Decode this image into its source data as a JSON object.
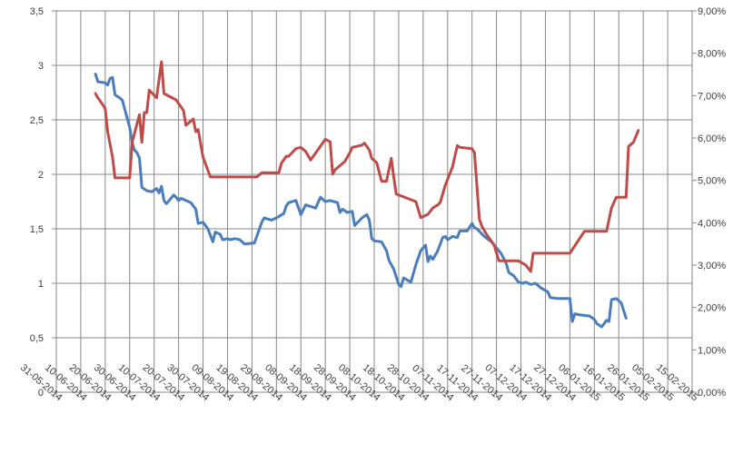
{
  "chart_data": {
    "type": "line",
    "title": "",
    "xlabel": "",
    "ylabel": "",
    "grid": true,
    "legend": "none",
    "x_axis": {
      "type": "date",
      "range": [
        "2014-05-31",
        "2015-02-15"
      ],
      "tick_labels": [
        "31-05-2014",
        "10-06-2014",
        "20-06-2014",
        "30-06-2014",
        "10-07-2014",
        "20-07-2014",
        "30-07-2014",
        "09-08-2014",
        "19-08-2014",
        "29-08-2014",
        "08-09-2014",
        "18-09-2014",
        "28-09-2014",
        "08-10-2014",
        "18-10-2014",
        "28-10-2014",
        "07-11-2014",
        "17-11-2014",
        "27-11-2014",
        "07-12-2014",
        "17-12-2014",
        "27-12-2014",
        "06-01-2015",
        "16-01-2015",
        "26-01-2015",
        "05-02-2015",
        "15-02-2015"
      ]
    },
    "y_left": {
      "range": [
        0,
        3.5
      ],
      "tick_labels": [
        "0",
        "0,5",
        "1",
        "1,5",
        "2",
        "2,5",
        "3",
        "3,5"
      ]
    },
    "y_right": {
      "range": [
        0,
        9
      ],
      "tick_labels": [
        "0,00%",
        "1,00%",
        "2,00%",
        "3,00%",
        "4,00%",
        "5,00%",
        "6,00%",
        "7,00%",
        "8,00%",
        "9,00%"
      ]
    },
    "series": [
      {
        "axis": "left",
        "color": "#4a7ebb",
        "points": [
          [
            "2014-06-16",
            2.92
          ],
          [
            "2014-06-17",
            2.85
          ],
          [
            "2014-06-20",
            2.84
          ],
          [
            "2014-06-21",
            2.82
          ],
          [
            "2014-06-22",
            2.88
          ],
          [
            "2014-06-23",
            2.89
          ],
          [
            "2014-06-24",
            2.73
          ],
          [
            "2014-06-26",
            2.7
          ],
          [
            "2014-06-27",
            2.68
          ],
          [
            "2014-06-30",
            2.43
          ],
          [
            "2014-07-01",
            2.29
          ],
          [
            "2014-07-02",
            2.22
          ],
          [
            "2014-07-03",
            2.2
          ],
          [
            "2014-07-04",
            2.15
          ],
          [
            "2014-07-05",
            1.88
          ],
          [
            "2014-07-07",
            1.85
          ],
          [
            "2014-07-09",
            1.84
          ],
          [
            "2014-07-11",
            1.87
          ],
          [
            "2014-07-12",
            1.83
          ],
          [
            "2014-07-13",
            1.89
          ],
          [
            "2014-07-14",
            1.76
          ],
          [
            "2014-07-15",
            1.73
          ],
          [
            "2014-07-18",
            1.81
          ],
          [
            "2014-07-19",
            1.79
          ],
          [
            "2014-07-20",
            1.76
          ],
          [
            "2014-07-21",
            1.78
          ],
          [
            "2014-07-23",
            1.76
          ],
          [
            "2014-07-25",
            1.74
          ],
          [
            "2014-07-27",
            1.68
          ],
          [
            "2014-07-28",
            1.55
          ],
          [
            "2014-07-30",
            1.56
          ],
          [
            "2014-08-01",
            1.5
          ],
          [
            "2014-08-03",
            1.38
          ],
          [
            "2014-08-04",
            1.47
          ],
          [
            "2014-08-06",
            1.45
          ],
          [
            "2014-08-07",
            1.4
          ],
          [
            "2014-08-09",
            1.41
          ],
          [
            "2014-08-10",
            1.4
          ],
          [
            "2014-08-12",
            1.41
          ],
          [
            "2014-08-14",
            1.4
          ],
          [
            "2014-08-16",
            1.36
          ],
          [
            "2014-08-20",
            1.37
          ],
          [
            "2014-08-23",
            1.56
          ],
          [
            "2014-08-24",
            1.6
          ],
          [
            "2014-08-27",
            1.58
          ],
          [
            "2014-08-29",
            1.6
          ],
          [
            "2014-09-01",
            1.64
          ],
          [
            "2014-09-02",
            1.71
          ],
          [
            "2014-09-03",
            1.74
          ],
          [
            "2014-09-06",
            1.76
          ],
          [
            "2014-09-08",
            1.63
          ],
          [
            "2014-09-10",
            1.72
          ],
          [
            "2014-09-14",
            1.69
          ],
          [
            "2014-09-16",
            1.79
          ],
          [
            "2014-09-18",
            1.75
          ],
          [
            "2014-09-20",
            1.76
          ],
          [
            "2014-09-23",
            1.74
          ],
          [
            "2014-09-24",
            1.65
          ],
          [
            "2014-09-25",
            1.68
          ],
          [
            "2014-09-27",
            1.65
          ],
          [
            "2014-09-29",
            1.66
          ],
          [
            "2014-09-30",
            1.53
          ],
          [
            "2014-10-03",
            1.6
          ],
          [
            "2014-10-05",
            1.63
          ],
          [
            "2014-10-06",
            1.58
          ],
          [
            "2014-10-07",
            1.41
          ],
          [
            "2014-10-08",
            1.39
          ],
          [
            "2014-10-11",
            1.38
          ],
          [
            "2014-10-13",
            1.3
          ],
          [
            "2014-10-14",
            1.21
          ],
          [
            "2014-10-16",
            1.13
          ],
          [
            "2014-10-18",
            0.99
          ],
          [
            "2014-10-19",
            0.97
          ],
          [
            "2014-10-20",
            1.05
          ],
          [
            "2014-10-23",
            1.01
          ],
          [
            "2014-10-25",
            1.17
          ],
          [
            "2014-10-27",
            1.3
          ],
          [
            "2014-10-29",
            1.35
          ],
          [
            "2014-10-30",
            1.2
          ],
          [
            "2014-10-31",
            1.25
          ],
          [
            "2014-11-01",
            1.22
          ],
          [
            "2014-11-03",
            1.3
          ],
          [
            "2014-11-05",
            1.42
          ],
          [
            "2014-11-06",
            1.43
          ],
          [
            "2014-11-07",
            1.4
          ],
          [
            "2014-11-09",
            1.43
          ],
          [
            "2014-11-11",
            1.42
          ],
          [
            "2014-11-12",
            1.48
          ],
          [
            "2014-11-15",
            1.48
          ],
          [
            "2014-11-17",
            1.55
          ],
          [
            "2014-11-18",
            1.51
          ],
          [
            "2014-11-19",
            1.5
          ],
          [
            "2014-11-22",
            1.43
          ],
          [
            "2014-11-25",
            1.38
          ],
          [
            "2014-11-29",
            1.27
          ],
          [
            "2014-12-01",
            1.18
          ],
          [
            "2014-12-02",
            1.1
          ],
          [
            "2014-12-04",
            1.07
          ],
          [
            "2014-12-06",
            1.01
          ],
          [
            "2014-12-08",
            1.0
          ],
          [
            "2014-12-09",
            1.01
          ],
          [
            "2014-12-11",
            0.99
          ],
          [
            "2014-12-13",
            1.0
          ],
          [
            "2014-12-15",
            0.96
          ],
          [
            "2014-12-18",
            0.92
          ],
          [
            "2014-12-19",
            0.87
          ],
          [
            "2014-12-22",
            0.86
          ],
          [
            "2014-12-25",
            0.86
          ],
          [
            "2014-12-27",
            0.86
          ],
          [
            "2014-12-28",
            0.65
          ],
          [
            "2014-12-29",
            0.72
          ],
          [
            "2014-12-31",
            0.71
          ],
          [
            "2015-01-04",
            0.7
          ],
          [
            "2015-01-06",
            0.67
          ],
          [
            "2015-01-07",
            0.63
          ],
          [
            "2015-01-09",
            0.6
          ],
          [
            "2015-01-11",
            0.66
          ],
          [
            "2015-01-12",
            0.65
          ],
          [
            "2015-01-13",
            0.85
          ],
          [
            "2015-01-15",
            0.86
          ],
          [
            "2015-01-17",
            0.82
          ],
          [
            "2015-01-19",
            0.68
          ]
        ]
      },
      {
        "axis": "right",
        "color": "#be4b48",
        "points": [
          [
            "2014-06-16",
            7.05
          ],
          [
            "2014-06-17",
            6.95
          ],
          [
            "2014-06-20",
            6.7
          ],
          [
            "2014-06-21",
            6.15
          ],
          [
            "2014-06-23",
            5.55
          ],
          [
            "2014-06-24",
            5.06
          ],
          [
            "2014-06-30",
            5.06
          ],
          [
            "2014-07-01",
            5.9
          ],
          [
            "2014-07-04",
            6.55
          ],
          [
            "2014-07-05",
            5.9
          ],
          [
            "2014-07-06",
            6.6
          ],
          [
            "2014-07-07",
            6.6
          ],
          [
            "2014-07-08",
            7.13
          ],
          [
            "2014-07-11",
            6.95
          ],
          [
            "2014-07-13",
            7.8
          ],
          [
            "2014-07-14",
            7.05
          ],
          [
            "2014-07-19",
            6.9
          ],
          [
            "2014-07-22",
            6.65
          ],
          [
            "2014-07-23",
            6.3
          ],
          [
            "2014-07-26",
            6.45
          ],
          [
            "2014-07-27",
            6.15
          ],
          [
            "2014-07-28",
            6.2
          ],
          [
            "2014-07-30",
            5.55
          ],
          [
            "2014-08-02",
            5.08
          ],
          [
            "2014-08-21",
            5.08
          ],
          [
            "2014-08-23",
            5.18
          ],
          [
            "2014-08-30",
            5.18
          ],
          [
            "2014-08-31",
            5.4
          ],
          [
            "2014-09-02",
            5.57
          ],
          [
            "2014-09-03",
            5.57
          ],
          [
            "2014-09-06",
            5.75
          ],
          [
            "2014-09-08",
            5.78
          ],
          [
            "2014-09-10",
            5.68
          ],
          [
            "2014-09-12",
            5.48
          ],
          [
            "2014-09-18",
            5.97
          ],
          [
            "2014-09-20",
            5.91
          ],
          [
            "2014-09-21",
            5.15
          ],
          [
            "2014-09-22",
            5.25
          ],
          [
            "2014-09-26",
            5.45
          ],
          [
            "2014-09-28",
            5.65
          ],
          [
            "2014-09-29",
            5.78
          ],
          [
            "2014-10-03",
            5.83
          ],
          [
            "2014-10-04",
            5.88
          ],
          [
            "2014-10-06",
            5.72
          ],
          [
            "2014-10-07",
            5.52
          ],
          [
            "2014-10-09",
            5.42
          ],
          [
            "2014-10-11",
            4.98
          ],
          [
            "2014-10-13",
            4.98
          ],
          [
            "2014-10-15",
            5.52
          ],
          [
            "2014-10-16",
            5.08
          ],
          [
            "2014-10-17",
            4.68
          ],
          [
            "2014-10-25",
            4.5
          ],
          [
            "2014-10-27",
            4.12
          ],
          [
            "2014-10-30",
            4.2
          ],
          [
            "2014-11-01",
            4.35
          ],
          [
            "2014-11-03",
            4.42
          ],
          [
            "2014-11-04",
            4.48
          ],
          [
            "2014-11-06",
            4.88
          ],
          [
            "2014-11-09",
            5.32
          ],
          [
            "2014-11-11",
            5.82
          ],
          [
            "2014-11-12",
            5.78
          ],
          [
            "2014-11-17",
            5.75
          ],
          [
            "2014-11-18",
            5.65
          ],
          [
            "2014-11-20",
            4.08
          ],
          [
            "2014-11-21",
            3.92
          ],
          [
            "2014-11-23",
            3.72
          ],
          [
            "2014-11-26",
            3.48
          ],
          [
            "2014-11-28",
            3.1
          ],
          [
            "2014-12-06",
            3.1
          ],
          [
            "2014-12-09",
            3.0
          ],
          [
            "2014-12-11",
            2.85
          ],
          [
            "2014-12-12",
            3.28
          ],
          [
            "2014-12-27",
            3.28
          ],
          [
            "2015-01-02",
            3.8
          ],
          [
            "2015-01-11",
            3.8
          ],
          [
            "2015-01-13",
            4.35
          ],
          [
            "2015-01-15",
            4.6
          ],
          [
            "2015-01-19",
            4.6
          ],
          [
            "2015-01-20",
            5.8
          ],
          [
            "2015-01-22",
            5.9
          ],
          [
            "2015-01-24",
            6.18
          ]
        ]
      }
    ]
  }
}
